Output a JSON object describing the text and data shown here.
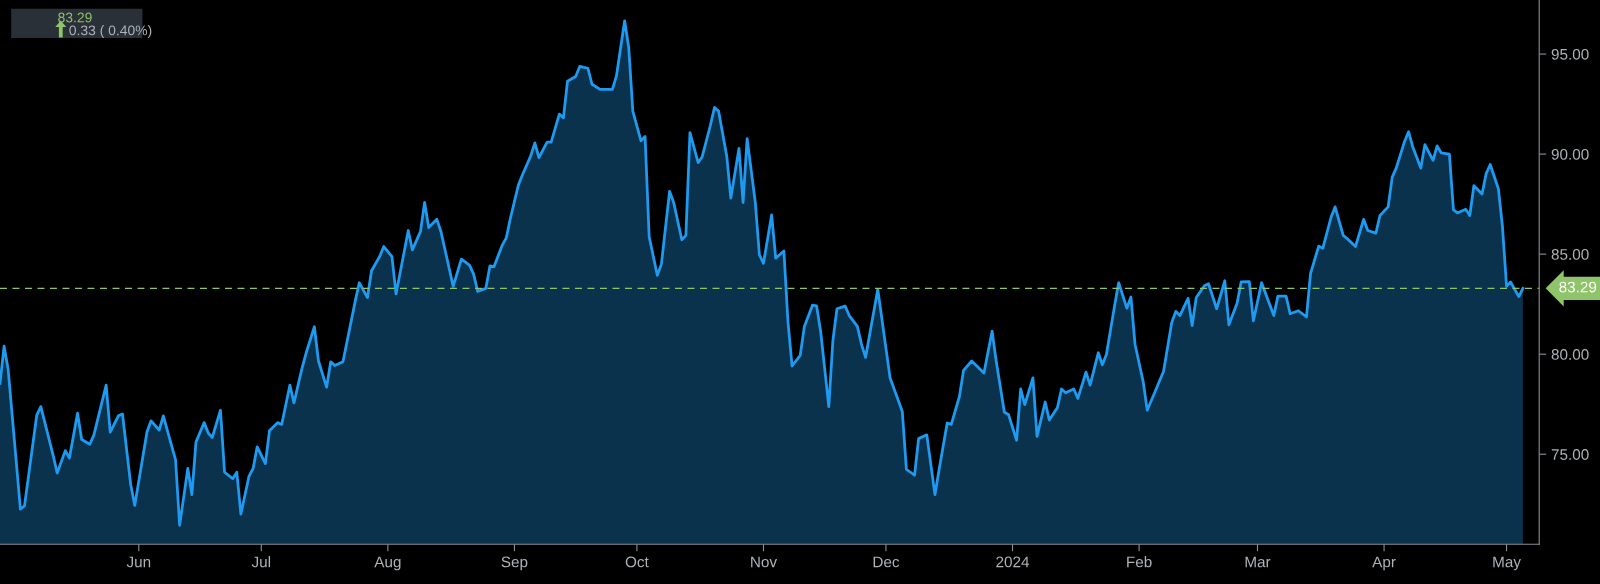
{
  "chart_data": {
    "type": "area",
    "annotations": [
      "83.29",
      "0.33 ( 0.40%)"
    ],
    "x": [
      "2023-04-28",
      "2023-04-29",
      "2023-04-30",
      "2023-05-03",
      "2023-05-04",
      "2023-05-07",
      "2023-05-08",
      "2023-05-11",
      "2023-05-12",
      "2023-05-14",
      "2023-05-15",
      "2023-05-17",
      "2023-05-18",
      "2023-05-20",
      "2023-05-21",
      "2023-05-24",
      "2023-05-25",
      "2023-05-27",
      "2023-05-28",
      "2023-05-30",
      "2023-05-31",
      "2023-06-03",
      "2023-06-04",
      "2023-06-06",
      "2023-06-07",
      "2023-06-10",
      "2023-06-11",
      "2023-06-13",
      "2023-06-14",
      "2023-06-15",
      "2023-06-17",
      "2023-06-18",
      "2023-06-19",
      "2023-06-21",
      "2023-06-22",
      "2023-06-24",
      "2023-06-25",
      "2023-06-26",
      "2023-06-28",
      "2023-06-29",
      "2023-06-30",
      "2023-07-02",
      "2023-07-03",
      "2023-07-05",
      "2023-07-06",
      "2023-07-08",
      "2023-07-09",
      "2023-07-11",
      "2023-07-12",
      "2023-07-14",
      "2023-07-15",
      "2023-07-17",
      "2023-07-18",
      "2023-07-19",
      "2023-07-21",
      "2023-07-24",
      "2023-07-25",
      "2023-07-27",
      "2023-07-28",
      "2023-07-30",
      "2023-07-31",
      "2023-08-02",
      "2023-08-03",
      "2023-08-05",
      "2023-08-06",
      "2023-08-07",
      "2023-08-09",
      "2023-08-10",
      "2023-08-11",
      "2023-08-13",
      "2023-08-14",
      "2023-08-17",
      "2023-08-19",
      "2023-08-21",
      "2023-08-22",
      "2023-08-23",
      "2023-08-25",
      "2023-08-26",
      "2023-08-27",
      "2023-08-29",
      "2023-08-30",
      "2023-08-31",
      "2023-09-02",
      "2023-09-03",
      "2023-09-05",
      "2023-09-06",
      "2023-09-07",
      "2023-09-09",
      "2023-09-10",
      "2023-09-12",
      "2023-09-13",
      "2023-09-14",
      "2023-09-16",
      "2023-09-17",
      "2023-09-19",
      "2023-09-20",
      "2023-09-22",
      "2023-09-25",
      "2023-09-26",
      "2023-09-28",
      "2023-09-29",
      "2023-09-30",
      "2023-10-02",
      "2023-10-03",
      "2023-10-04",
      "2023-10-06",
      "2023-10-07",
      "2023-10-09",
      "2023-10-10",
      "2023-10-12",
      "2023-10-13",
      "2023-10-14",
      "2023-10-16",
      "2023-10-17",
      "2023-10-19",
      "2023-10-20",
      "2023-10-21",
      "2023-10-23",
      "2023-10-24",
      "2023-10-26",
      "2023-10-27",
      "2023-10-28",
      "2023-10-30",
      "2023-10-31",
      "2023-11-01",
      "2023-11-03",
      "2023-11-04",
      "2023-11-06",
      "2023-11-07",
      "2023-11-08",
      "2023-11-10",
      "2023-11-11",
      "2023-11-13",
      "2023-11-14",
      "2023-11-15",
      "2023-11-17",
      "2023-11-18",
      "2023-11-19",
      "2023-11-21",
      "2023-11-22",
      "2023-11-24",
      "2023-11-25",
      "2023-11-26",
      "2023-11-29",
      "2023-12-02",
      "2023-12-05",
      "2023-12-06",
      "2023-12-08",
      "2023-12-09",
      "2023-12-11",
      "2023-12-13",
      "2023-12-14",
      "2023-12-16",
      "2023-12-17",
      "2023-12-19",
      "2023-12-20",
      "2023-12-22",
      "2023-12-25",
      "2023-12-27",
      "2023-12-28",
      "2023-12-30",
      "2023-12-31",
      "2024-01-02",
      "2024-01-03",
      "2024-01-04",
      "2024-01-06",
      "2024-01-07",
      "2024-01-09",
      "2024-01-10",
      "2024-01-12",
      "2024-01-13",
      "2024-01-14",
      "2024-01-16",
      "2024-01-17",
      "2024-01-19",
      "2024-01-20",
      "2024-01-22",
      "2024-01-23",
      "2024-01-24",
      "2024-01-26",
      "2024-01-27",
      "2024-01-29",
      "2024-01-30",
      "2024-01-31",
      "2024-02-02",
      "2024-02-03",
      "2024-02-07",
      "2024-02-09",
      "2024-02-10",
      "2024-02-11",
      "2024-02-13",
      "2024-02-14",
      "2024-02-15",
      "2024-02-17",
      "2024-02-18",
      "2024-02-20",
      "2024-02-22",
      "2024-02-23",
      "2024-02-25",
      "2024-02-26",
      "2024-02-28",
      "2024-02-29",
      "2024-03-02",
      "2024-03-05",
      "2024-03-06",
      "2024-03-08",
      "2024-03-09",
      "2024-03-11",
      "2024-03-13",
      "2024-03-14",
      "2024-03-16",
      "2024-03-17",
      "2024-03-19",
      "2024-03-20",
      "2024-03-22",
      "2024-03-23",
      "2024-03-25",
      "2024-03-27",
      "2024-03-28",
      "2024-03-30",
      "2024-03-31",
      "2024-04-02",
      "2024-04-03",
      "2024-04-04",
      "2024-04-06",
      "2024-04-07",
      "2024-04-08",
      "2024-04-10",
      "2024-04-11",
      "2024-04-13",
      "2024-04-14",
      "2024-04-15",
      "2024-04-17",
      "2024-04-18",
      "2024-04-19",
      "2024-04-21",
      "2024-04-22",
      "2024-04-23",
      "2024-04-25",
      "2024-04-26",
      "2024-04-27",
      "2024-04-29",
      "2024-04-30",
      "2024-05-01",
      "2024-05-02",
      "2024-05-04",
      "2024-05-05"
    ],
    "series": [
      {
        "color": "#1e9bf0",
        "values": [
          78.54,
          80.4,
          79.23,
          72.26,
          72.42,
          76.95,
          77.38,
          74.96,
          74.06,
          75.18,
          74.81,
          77.05,
          75.74,
          75.5,
          75.97,
          78.45,
          76.11,
          76.92,
          77.01,
          73.5,
          72.44,
          76.11,
          76.67,
          76.21,
          76.92,
          74.72,
          71.45,
          74.29,
          72.98,
          75.61,
          76.58,
          76.06,
          75.84,
          77.2,
          74.1,
          73.78,
          74.1,
          72.01,
          73.91,
          74.29,
          75.37,
          74.53,
          76.17,
          76.58,
          76.49,
          78.45,
          77.57,
          79.32,
          80.07,
          81.37,
          79.66,
          78.35,
          79.62,
          79.43,
          79.62,
          82.64,
          83.57,
          82.83,
          84.17,
          84.88,
          85.38,
          84.88,
          83.01,
          85.12,
          86.18,
          85.21,
          86.14,
          87.58,
          86.33,
          86.74,
          86.13,
          83.39,
          84.75,
          84.45,
          84.0,
          83.14,
          83.29,
          84.41,
          84.37,
          85.44,
          85.81,
          86.78,
          88.47,
          88.98,
          89.91,
          90.56,
          89.82,
          90.6,
          90.6,
          92.0,
          91.81,
          93.64,
          93.88,
          94.38,
          94.29,
          93.49,
          93.23,
          93.23,
          93.92,
          96.66,
          95.32,
          92.15,
          90.66,
          90.88,
          85.87,
          83.94,
          84.5,
          88.14,
          87.58,
          85.72,
          85.94,
          91.07,
          89.57,
          89.87,
          91.44,
          92.33,
          92.15,
          89.91,
          87.8,
          90.28,
          87.58,
          90.77,
          87.58,
          84.97,
          84.54,
          86.96,
          84.8,
          85.16,
          81.61,
          79.41,
          79.94,
          81.37,
          82.45,
          82.42,
          81.15,
          77.38,
          80.68,
          82.27,
          82.4,
          81.93,
          81.39,
          80.5,
          79.84,
          83.24,
          78.82,
          77.14,
          74.25,
          73.95,
          75.78,
          75.97,
          72.98,
          74.21,
          76.56,
          76.49,
          77.89,
          79.19,
          79.66,
          79.06,
          81.15,
          79.66,
          77.1,
          76.99,
          75.7,
          78.26,
          77.48,
          78.82,
          75.89,
          77.61,
          76.71,
          77.33,
          78.26,
          78.07,
          78.26,
          77.79,
          79.1,
          78.45,
          80.07,
          79.47,
          79.99,
          82.42,
          83.57,
          82.3,
          82.86,
          80.5,
          78.63,
          77.2,
          79.15,
          81.58,
          82.14,
          81.93,
          82.79,
          81.43,
          82.83,
          83.42,
          83.52,
          82.27,
          83.67,
          81.47,
          82.55,
          83.61,
          83.63,
          81.67,
          83.57,
          81.93,
          82.9,
          82.9,
          82.02,
          82.17,
          81.86,
          84.04,
          85.4,
          85.29,
          86.83,
          87.36,
          85.94,
          85.77,
          85.38,
          86.74,
          86.18,
          86.05,
          86.93,
          87.36,
          88.85,
          89.31,
          90.62,
          91.12,
          90.38,
          89.3,
          90.47,
          89.69,
          90.41,
          90.06,
          90.0,
          87.21,
          87.06,
          87.24,
          86.93,
          88.42,
          88.01,
          89.02,
          89.48,
          88.27,
          86.37,
          83.39,
          83.61,
          82.88,
          83.29
        ]
      }
    ],
    "xlim": [
      "2023-04-28",
      "2024-05-09"
    ],
    "xticks": [
      {
        "value": "2023-06-01",
        "label": "Jun"
      },
      {
        "value": "2023-07-01",
        "label": "Jul"
      },
      {
        "value": "2023-08-01",
        "label": "Aug"
      },
      {
        "value": "2023-09-01",
        "label": "Sep"
      },
      {
        "value": "2023-10-01",
        "label": "Oct"
      },
      {
        "value": "2023-11-01",
        "label": "Nov"
      },
      {
        "value": "2023-12-01",
        "label": "Dec"
      },
      {
        "value": "2024-01-01",
        "label": "2024"
      },
      {
        "value": "2024-02-01",
        "label": "Feb"
      },
      {
        "value": "2024-03-01",
        "label": "Mar"
      },
      {
        "value": "2024-04-01",
        "label": "Apr"
      },
      {
        "value": "2024-05-01",
        "label": "May"
      }
    ],
    "ylim": [
      70.5,
      97.7
    ],
    "yticks": [
      {
        "value": 75,
        "label": "75.00"
      },
      {
        "value": 80,
        "label": "80.00"
      },
      {
        "value": 85,
        "label": "85.00"
      },
      {
        "value": 90,
        "label": "90.00"
      },
      {
        "value": 95,
        "label": "95.00"
      }
    ],
    "ref_lines": [
      {
        "axis": "y",
        "value": 83.29,
        "label": "83.29",
        "color": "#8fc46a",
        "line_style": "dashed"
      }
    ],
    "grid": false,
    "marker": "none",
    "line_style": "solid"
  }
}
